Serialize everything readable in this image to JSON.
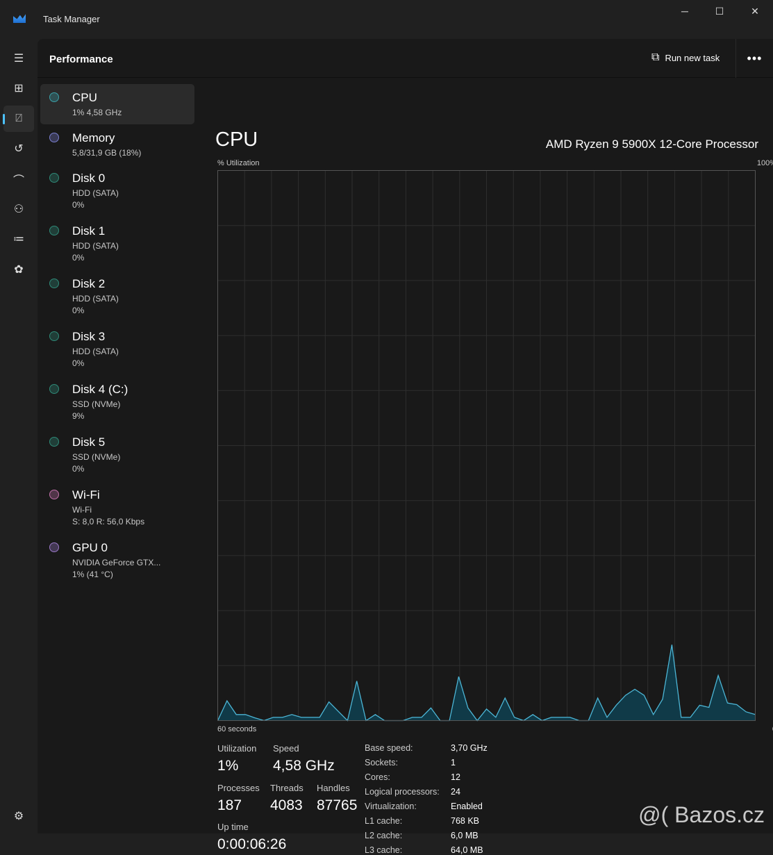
{
  "window": {
    "title": "Task Manager",
    "minimize": "─",
    "maximize": "☐",
    "close": "✕"
  },
  "rail": [
    "hamburger-icon",
    "processes-icon",
    "performance-icon",
    "app-history-icon",
    "startup-icon",
    "users-icon",
    "details-icon",
    "services-icon",
    "settings-icon"
  ],
  "header": {
    "title": "Performance",
    "run_new_task": "Run new task",
    "more": "•••"
  },
  "devices": [
    {
      "name": "CPU",
      "lines": [
        "1% 4,58 GHz"
      ],
      "color": "#3aa0a8"
    },
    {
      "name": "Memory",
      "lines": [
        "5,8/31,9 GB (18%)"
      ],
      "color": "#7a7fd0"
    },
    {
      "name": "Disk 0",
      "lines": [
        "HDD (SATA)",
        "0%"
      ],
      "color": "#2f8a78"
    },
    {
      "name": "Disk 1",
      "lines": [
        "HDD (SATA)",
        "0%"
      ],
      "color": "#2f8a78"
    },
    {
      "name": "Disk 2",
      "lines": [
        "HDD (SATA)",
        "0%"
      ],
      "color": "#2f8a78"
    },
    {
      "name": "Disk 3",
      "lines": [
        "HDD (SATA)",
        "0%"
      ],
      "color": "#2f8a78"
    },
    {
      "name": "Disk 4 (C:)",
      "lines": [
        "SSD (NVMe)",
        "9%"
      ],
      "color": "#2f8a78"
    },
    {
      "name": "Disk 5",
      "lines": [
        "SSD (NVMe)",
        "0%"
      ],
      "color": "#2f8a78"
    },
    {
      "name": "Wi-Fi",
      "lines": [
        "Wi-Fi",
        "S: 8,0 R: 56,0 Kbps"
      ],
      "color": "#c070a8"
    },
    {
      "name": "GPU 0",
      "lines": [
        "NVIDIA GeForce GTX...",
        "1%  (41 °C)"
      ],
      "color": "#9a78c8"
    }
  ],
  "cpu": {
    "title": "CPU",
    "model": "AMD Ryzen 9 5900X 12-Core Processor"
  },
  "chart_data": {
    "type": "area",
    "ylabel": "% Utilization",
    "ymax_label": "100%",
    "xmin_label": "60 seconds",
    "xmax_label": "0",
    "ylim": [
      0,
      100
    ],
    "xlim": [
      -60,
      0
    ],
    "grid": true,
    "color": "#4cb6d6",
    "values": [
      0,
      3.6,
      1.1,
      1.1,
      0.5,
      0,
      0.6,
      0.6,
      1.1,
      0.6,
      0.6,
      0.6,
      3.4,
      1.7,
      0,
      7.2,
      0,
      1.1,
      0,
      0,
      0,
      0.6,
      0.6,
      2.3,
      0,
      0,
      8,
      2.3,
      0,
      2.1,
      0.6,
      4.1,
      0.6,
      0,
      1.1,
      0,
      0.6,
      0.6,
      0.6,
      0,
      0,
      4.1,
      0.6,
      2.8,
      4.6,
      5.7,
      4.6,
      1.1,
      3.9,
      13.8,
      0.6,
      0.6,
      2.8,
      2.4,
      8.2,
      3.2,
      2.9,
      1.6,
      1.1
    ]
  },
  "stats": {
    "utilization_label": "Utilization",
    "utilization": "1%",
    "speed_label": "Speed",
    "speed": "4,58 GHz",
    "processes_label": "Processes",
    "processes": "187",
    "threads_label": "Threads",
    "threads": "4083",
    "handles_label": "Handles",
    "handles": "87765",
    "uptime_label": "Up time",
    "uptime": "0:00:06:26"
  },
  "specs": [
    [
      "Base speed:",
      "3,70 GHz"
    ],
    [
      "Sockets:",
      "1"
    ],
    [
      "Cores:",
      "12"
    ],
    [
      "Logical processors:",
      "24"
    ],
    [
      "Virtualization:",
      "Enabled"
    ],
    [
      "L1 cache:",
      "768 KB"
    ],
    [
      "L2 cache:",
      "6,0 MB"
    ],
    [
      "L3 cache:",
      "64,0 MB"
    ]
  ],
  "watermark": "@( Bazos.cz"
}
